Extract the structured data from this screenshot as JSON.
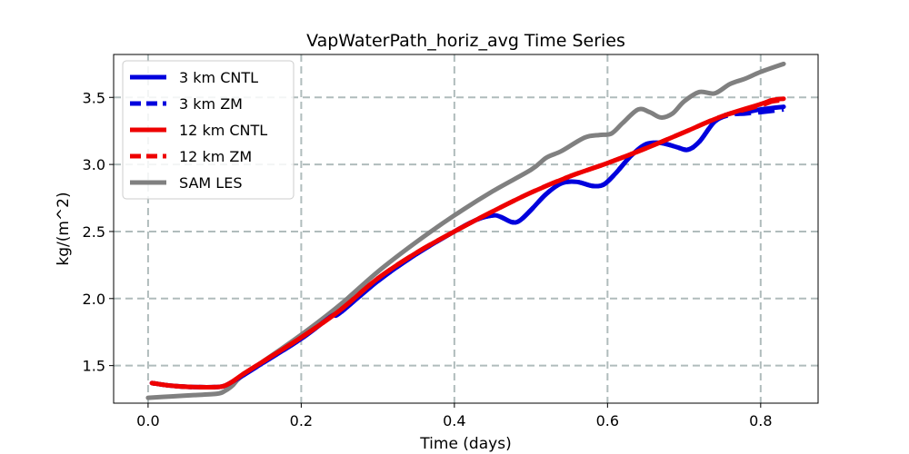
{
  "chart_data": {
    "type": "line",
    "title": "VapWaterPath_horiz_avg Time Series",
    "xlabel": "Time (days)",
    "ylabel": "kg/(m^2)",
    "xlim": [
      -0.045,
      0.875
    ],
    "ylim": [
      1.22,
      3.82
    ],
    "xticks": [
      0.0,
      0.2,
      0.4,
      0.6,
      0.8
    ],
    "xtick_labels": [
      "0.0",
      "0.2",
      "0.4",
      "0.6",
      "0.8"
    ],
    "yticks": [
      1.5,
      2.0,
      2.5,
      3.0,
      3.5
    ],
    "ytick_labels": [
      "1.5",
      "2.0",
      "2.5",
      "3.0",
      "3.5"
    ],
    "grid": true,
    "legend_position": "top-left",
    "series": [
      {
        "name": "3 km CNTL",
        "color": "#0000dd",
        "style": "solid",
        "x": [
          0.005,
          0.03,
          0.06,
          0.09,
          0.1,
          0.11,
          0.125,
          0.15,
          0.2,
          0.24,
          0.25,
          0.3,
          0.35,
          0.4,
          0.43,
          0.45,
          0.46,
          0.475,
          0.485,
          0.5,
          0.52,
          0.54,
          0.56,
          0.58,
          0.595,
          0.61,
          0.63,
          0.65,
          0.67,
          0.69,
          0.705,
          0.72,
          0.74,
          0.76,
          0.78,
          0.8,
          0.83
        ],
        "y": [
          1.37,
          1.35,
          1.34,
          1.34,
          1.35,
          1.38,
          1.43,
          1.52,
          1.7,
          1.87,
          1.89,
          2.13,
          2.33,
          2.5,
          2.59,
          2.62,
          2.61,
          2.57,
          2.58,
          2.66,
          2.78,
          2.86,
          2.87,
          2.84,
          2.85,
          2.93,
          3.06,
          3.15,
          3.16,
          3.13,
          3.11,
          3.17,
          3.32,
          3.38,
          3.39,
          3.41,
          3.43
        ]
      },
      {
        "name": "3 km ZM",
        "color": "#0000dd",
        "style": "dashed",
        "x": [
          0.005,
          0.03,
          0.06,
          0.09,
          0.1,
          0.11,
          0.125,
          0.15,
          0.2,
          0.24,
          0.25,
          0.3,
          0.35,
          0.4,
          0.43,
          0.45,
          0.46,
          0.475,
          0.485,
          0.5,
          0.52,
          0.54,
          0.56,
          0.58,
          0.595,
          0.61,
          0.63,
          0.65,
          0.67,
          0.69,
          0.705,
          0.72,
          0.74,
          0.76,
          0.78,
          0.8,
          0.83
        ],
        "y": [
          1.37,
          1.35,
          1.34,
          1.34,
          1.35,
          1.38,
          1.43,
          1.52,
          1.7,
          1.87,
          1.89,
          2.13,
          2.33,
          2.5,
          2.59,
          2.62,
          2.61,
          2.57,
          2.58,
          2.66,
          2.78,
          2.86,
          2.87,
          2.84,
          2.85,
          2.93,
          3.06,
          3.15,
          3.16,
          3.13,
          3.11,
          3.17,
          3.32,
          3.37,
          3.38,
          3.39,
          3.41
        ]
      },
      {
        "name": "12 km CNTL",
        "color": "#ee0000",
        "style": "solid",
        "x": [
          0.005,
          0.03,
          0.06,
          0.09,
          0.1,
          0.11,
          0.125,
          0.15,
          0.2,
          0.25,
          0.3,
          0.35,
          0.4,
          0.45,
          0.5,
          0.55,
          0.6,
          0.65,
          0.7,
          0.75,
          0.8,
          0.815,
          0.83
        ],
        "y": [
          1.37,
          1.35,
          1.34,
          1.34,
          1.35,
          1.38,
          1.44,
          1.53,
          1.71,
          1.91,
          2.15,
          2.34,
          2.5,
          2.65,
          2.79,
          2.91,
          3.01,
          3.12,
          3.24,
          3.36,
          3.45,
          3.48,
          3.49
        ]
      },
      {
        "name": "12 km ZM",
        "color": "#ee0000",
        "style": "dashed",
        "x": [
          0.005,
          0.03,
          0.06,
          0.09,
          0.1,
          0.11,
          0.125,
          0.15,
          0.2,
          0.25,
          0.3,
          0.35,
          0.4,
          0.45,
          0.5,
          0.55,
          0.6,
          0.65,
          0.7,
          0.75,
          0.8,
          0.815,
          0.83
        ],
        "y": [
          1.37,
          1.35,
          1.34,
          1.34,
          1.35,
          1.38,
          1.44,
          1.53,
          1.71,
          1.91,
          2.15,
          2.34,
          2.5,
          2.65,
          2.79,
          2.91,
          3.01,
          3.12,
          3.24,
          3.36,
          3.44,
          3.47,
          3.48
        ]
      },
      {
        "name": "SAM LES",
        "color": "#808080",
        "style": "solid",
        "x": [
          0.0,
          0.03,
          0.06,
          0.09,
          0.1,
          0.11,
          0.12,
          0.15,
          0.2,
          0.25,
          0.3,
          0.35,
          0.4,
          0.45,
          0.5,
          0.52,
          0.54,
          0.57,
          0.59,
          0.605,
          0.62,
          0.64,
          0.655,
          0.67,
          0.685,
          0.7,
          0.72,
          0.74,
          0.76,
          0.78,
          0.8,
          0.83
        ],
        "y": [
          1.26,
          1.27,
          1.28,
          1.29,
          1.31,
          1.35,
          1.41,
          1.53,
          1.73,
          1.95,
          2.2,
          2.42,
          2.62,
          2.8,
          2.96,
          3.05,
          3.1,
          3.2,
          3.22,
          3.23,
          3.31,
          3.41,
          3.39,
          3.35,
          3.38,
          3.47,
          3.54,
          3.53,
          3.6,
          3.64,
          3.69,
          3.75
        ]
      }
    ]
  }
}
